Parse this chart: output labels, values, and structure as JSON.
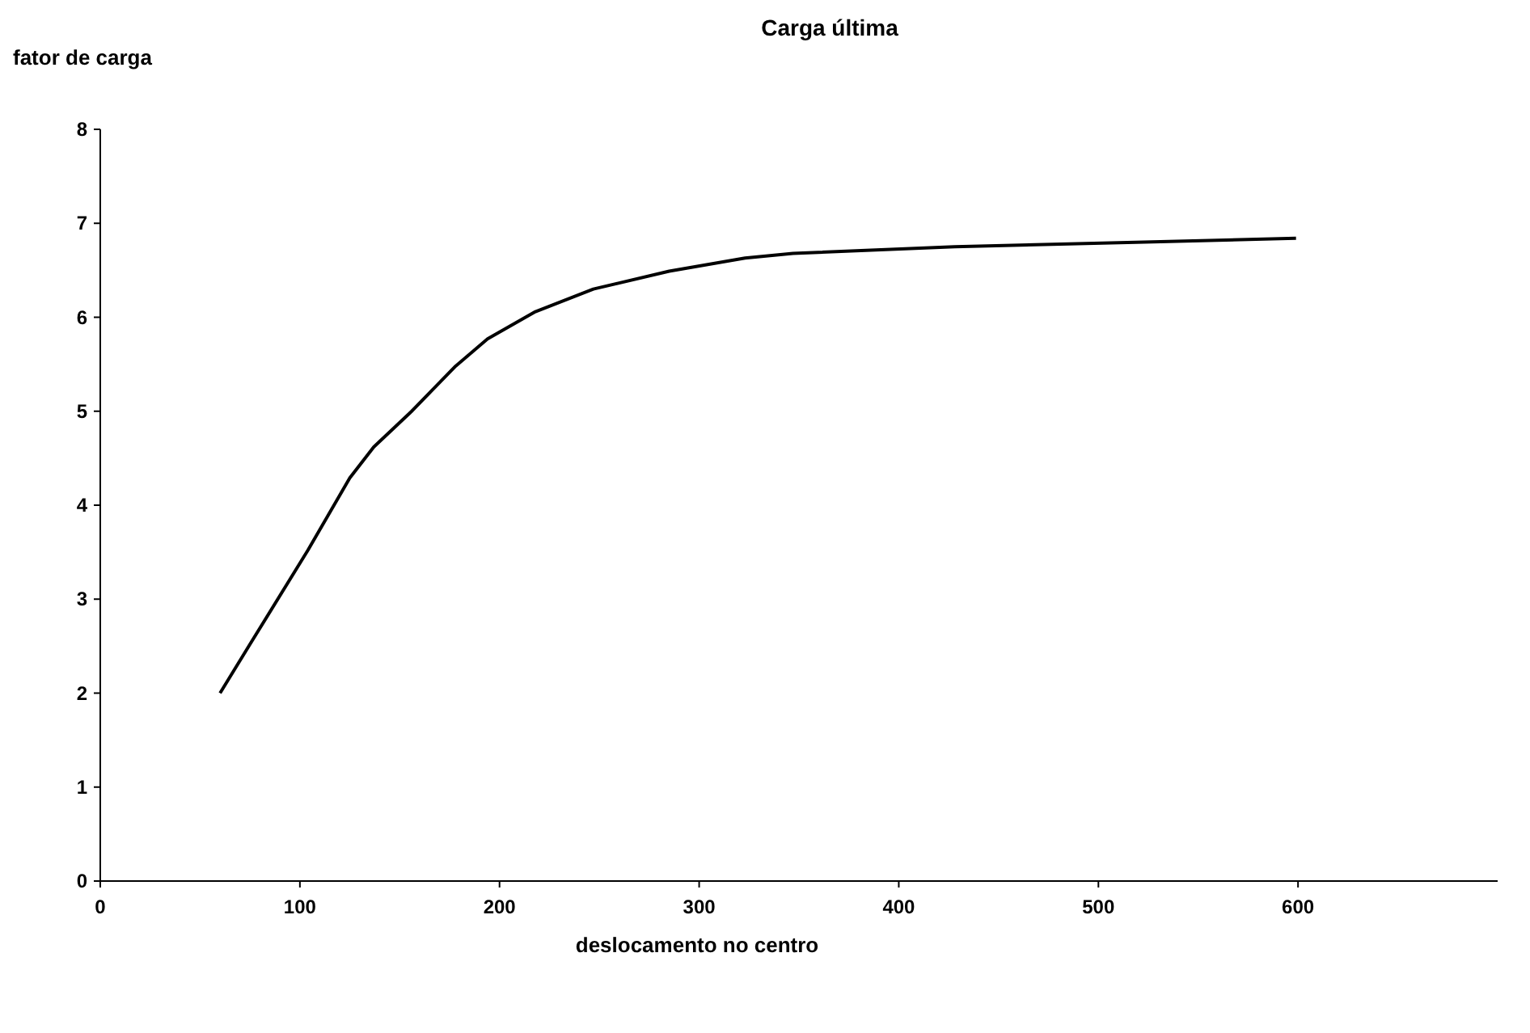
{
  "chart_data": {
    "type": "line",
    "title": "Carga última",
    "xlabel": "deslocamento no centro",
    "ylabel": "fator de carga",
    "x": [
      60,
      75,
      104,
      125,
      137,
      156,
      178,
      194,
      218,
      247,
      285,
      323,
      347,
      428,
      523,
      599
    ],
    "series": [
      {
        "color": "#000000",
        "values": [
          2.0,
          2.52,
          3.52,
          4.29,
          4.62,
          5.0,
          5.48,
          5.77,
          6.06,
          6.3,
          6.49,
          6.63,
          6.68,
          6.75,
          6.8,
          6.84
        ]
      }
    ],
    "xlim": [
      0,
      700
    ],
    "xticks": [
      0,
      100,
      200,
      300,
      400,
      500,
      600
    ],
    "ylim": [
      0,
      8
    ],
    "yticks": [
      0,
      1,
      2,
      3,
      4,
      5,
      6,
      7,
      8
    ],
    "marker": "none",
    "line_style": "solid"
  }
}
